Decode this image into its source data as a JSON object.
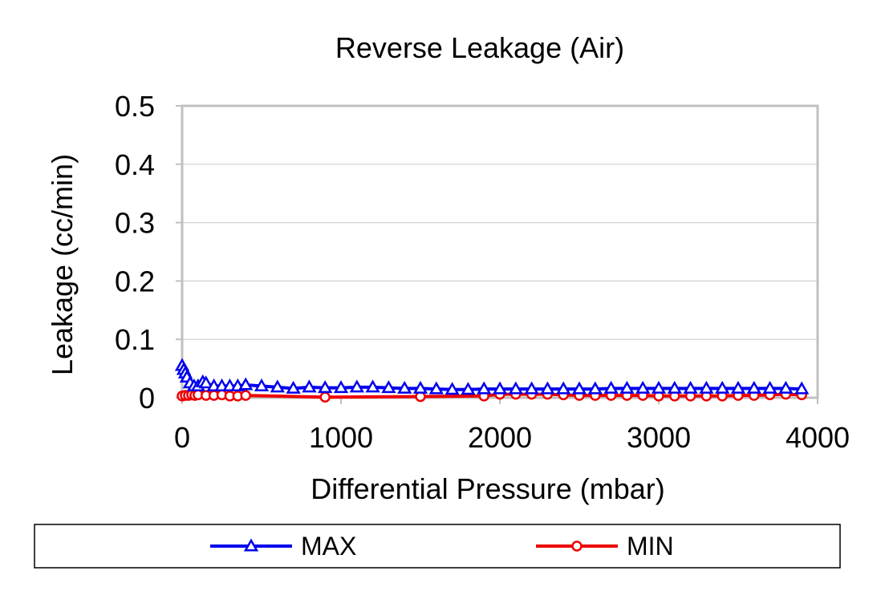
{
  "chart_data": {
    "type": "line",
    "title": "Reverse Leakage (Air)",
    "xlabel": "Differential Pressure (mbar)",
    "ylabel": "Leakage (cc/min)",
    "xlim": [
      0,
      4000
    ],
    "ylim": [
      0,
      0.5
    ],
    "x_ticks": [
      "0",
      "1000",
      "2000",
      "3000",
      "4000"
    ],
    "y_ticks": [
      "0",
      "0.1",
      "0.2",
      "0.3",
      "0.4",
      "0.5"
    ],
    "grid": "horizontal",
    "legend_position": "bottom",
    "series": [
      {
        "name": "MAX",
        "color": "#0000ee",
        "marker": "triangle",
        "points": [
          [
            0,
            0.055
          ],
          [
            10,
            0.048
          ],
          [
            20,
            0.042
          ],
          [
            30,
            0.035
          ],
          [
            50,
            0.025
          ],
          [
            75,
            0.02
          ],
          [
            100,
            0.02
          ],
          [
            130,
            0.027
          ],
          [
            150,
            0.025
          ],
          [
            200,
            0.02
          ],
          [
            250,
            0.02
          ],
          [
            300,
            0.02
          ],
          [
            350,
            0.02
          ],
          [
            400,
            0.022
          ],
          [
            500,
            0.02
          ],
          [
            600,
            0.018
          ],
          [
            700,
            0.016
          ],
          [
            800,
            0.018
          ],
          [
            900,
            0.017
          ],
          [
            1000,
            0.017
          ],
          [
            1100,
            0.018
          ],
          [
            1200,
            0.018
          ],
          [
            1300,
            0.017
          ],
          [
            1400,
            0.016
          ],
          [
            1500,
            0.016
          ],
          [
            1600,
            0.015
          ],
          [
            1700,
            0.014
          ],
          [
            1800,
            0.014
          ],
          [
            1900,
            0.015
          ],
          [
            2000,
            0.015
          ],
          [
            2100,
            0.015
          ],
          [
            2200,
            0.015
          ],
          [
            2300,
            0.015
          ],
          [
            2400,
            0.015
          ],
          [
            2500,
            0.015
          ],
          [
            2600,
            0.015
          ],
          [
            2700,
            0.016
          ],
          [
            2800,
            0.016
          ],
          [
            2900,
            0.016
          ],
          [
            3000,
            0.016
          ],
          [
            3100,
            0.016
          ],
          [
            3200,
            0.016
          ],
          [
            3300,
            0.016
          ],
          [
            3400,
            0.016
          ],
          [
            3500,
            0.016
          ],
          [
            3600,
            0.016
          ],
          [
            3700,
            0.016
          ],
          [
            3800,
            0.016
          ],
          [
            3900,
            0.015
          ]
        ]
      },
      {
        "name": "MIN",
        "color": "#ee0000",
        "marker": "circle",
        "points": [
          [
            0,
            0.003
          ],
          [
            20,
            0.004
          ],
          [
            40,
            0.004
          ],
          [
            60,
            0.005
          ],
          [
            80,
            0.004
          ],
          [
            100,
            0.005
          ],
          [
            150,
            0.004
          ],
          [
            200,
            0.004
          ],
          [
            250,
            0.005
          ],
          [
            300,
            0.003
          ],
          [
            350,
            0.003
          ],
          [
            400,
            0.004
          ],
          [
            900,
            0.001
          ],
          [
            1500,
            0.002
          ],
          [
            1900,
            0.003
          ],
          [
            2000,
            0.006
          ],
          [
            2100,
            0.006
          ],
          [
            2200,
            0.006
          ],
          [
            2300,
            0.006
          ],
          [
            2400,
            0.005
          ],
          [
            2500,
            0.004
          ],
          [
            2600,
            0.004
          ],
          [
            2700,
            0.004
          ],
          [
            2800,
            0.004
          ],
          [
            2900,
            0.004
          ],
          [
            3000,
            0.003
          ],
          [
            3100,
            0.003
          ],
          [
            3200,
            0.003
          ],
          [
            3300,
            0.003
          ],
          [
            3400,
            0.003
          ],
          [
            3500,
            0.004
          ],
          [
            3600,
            0.004
          ],
          [
            3700,
            0.005
          ],
          [
            3800,
            0.006
          ],
          [
            3900,
            0.005
          ]
        ]
      }
    ]
  }
}
